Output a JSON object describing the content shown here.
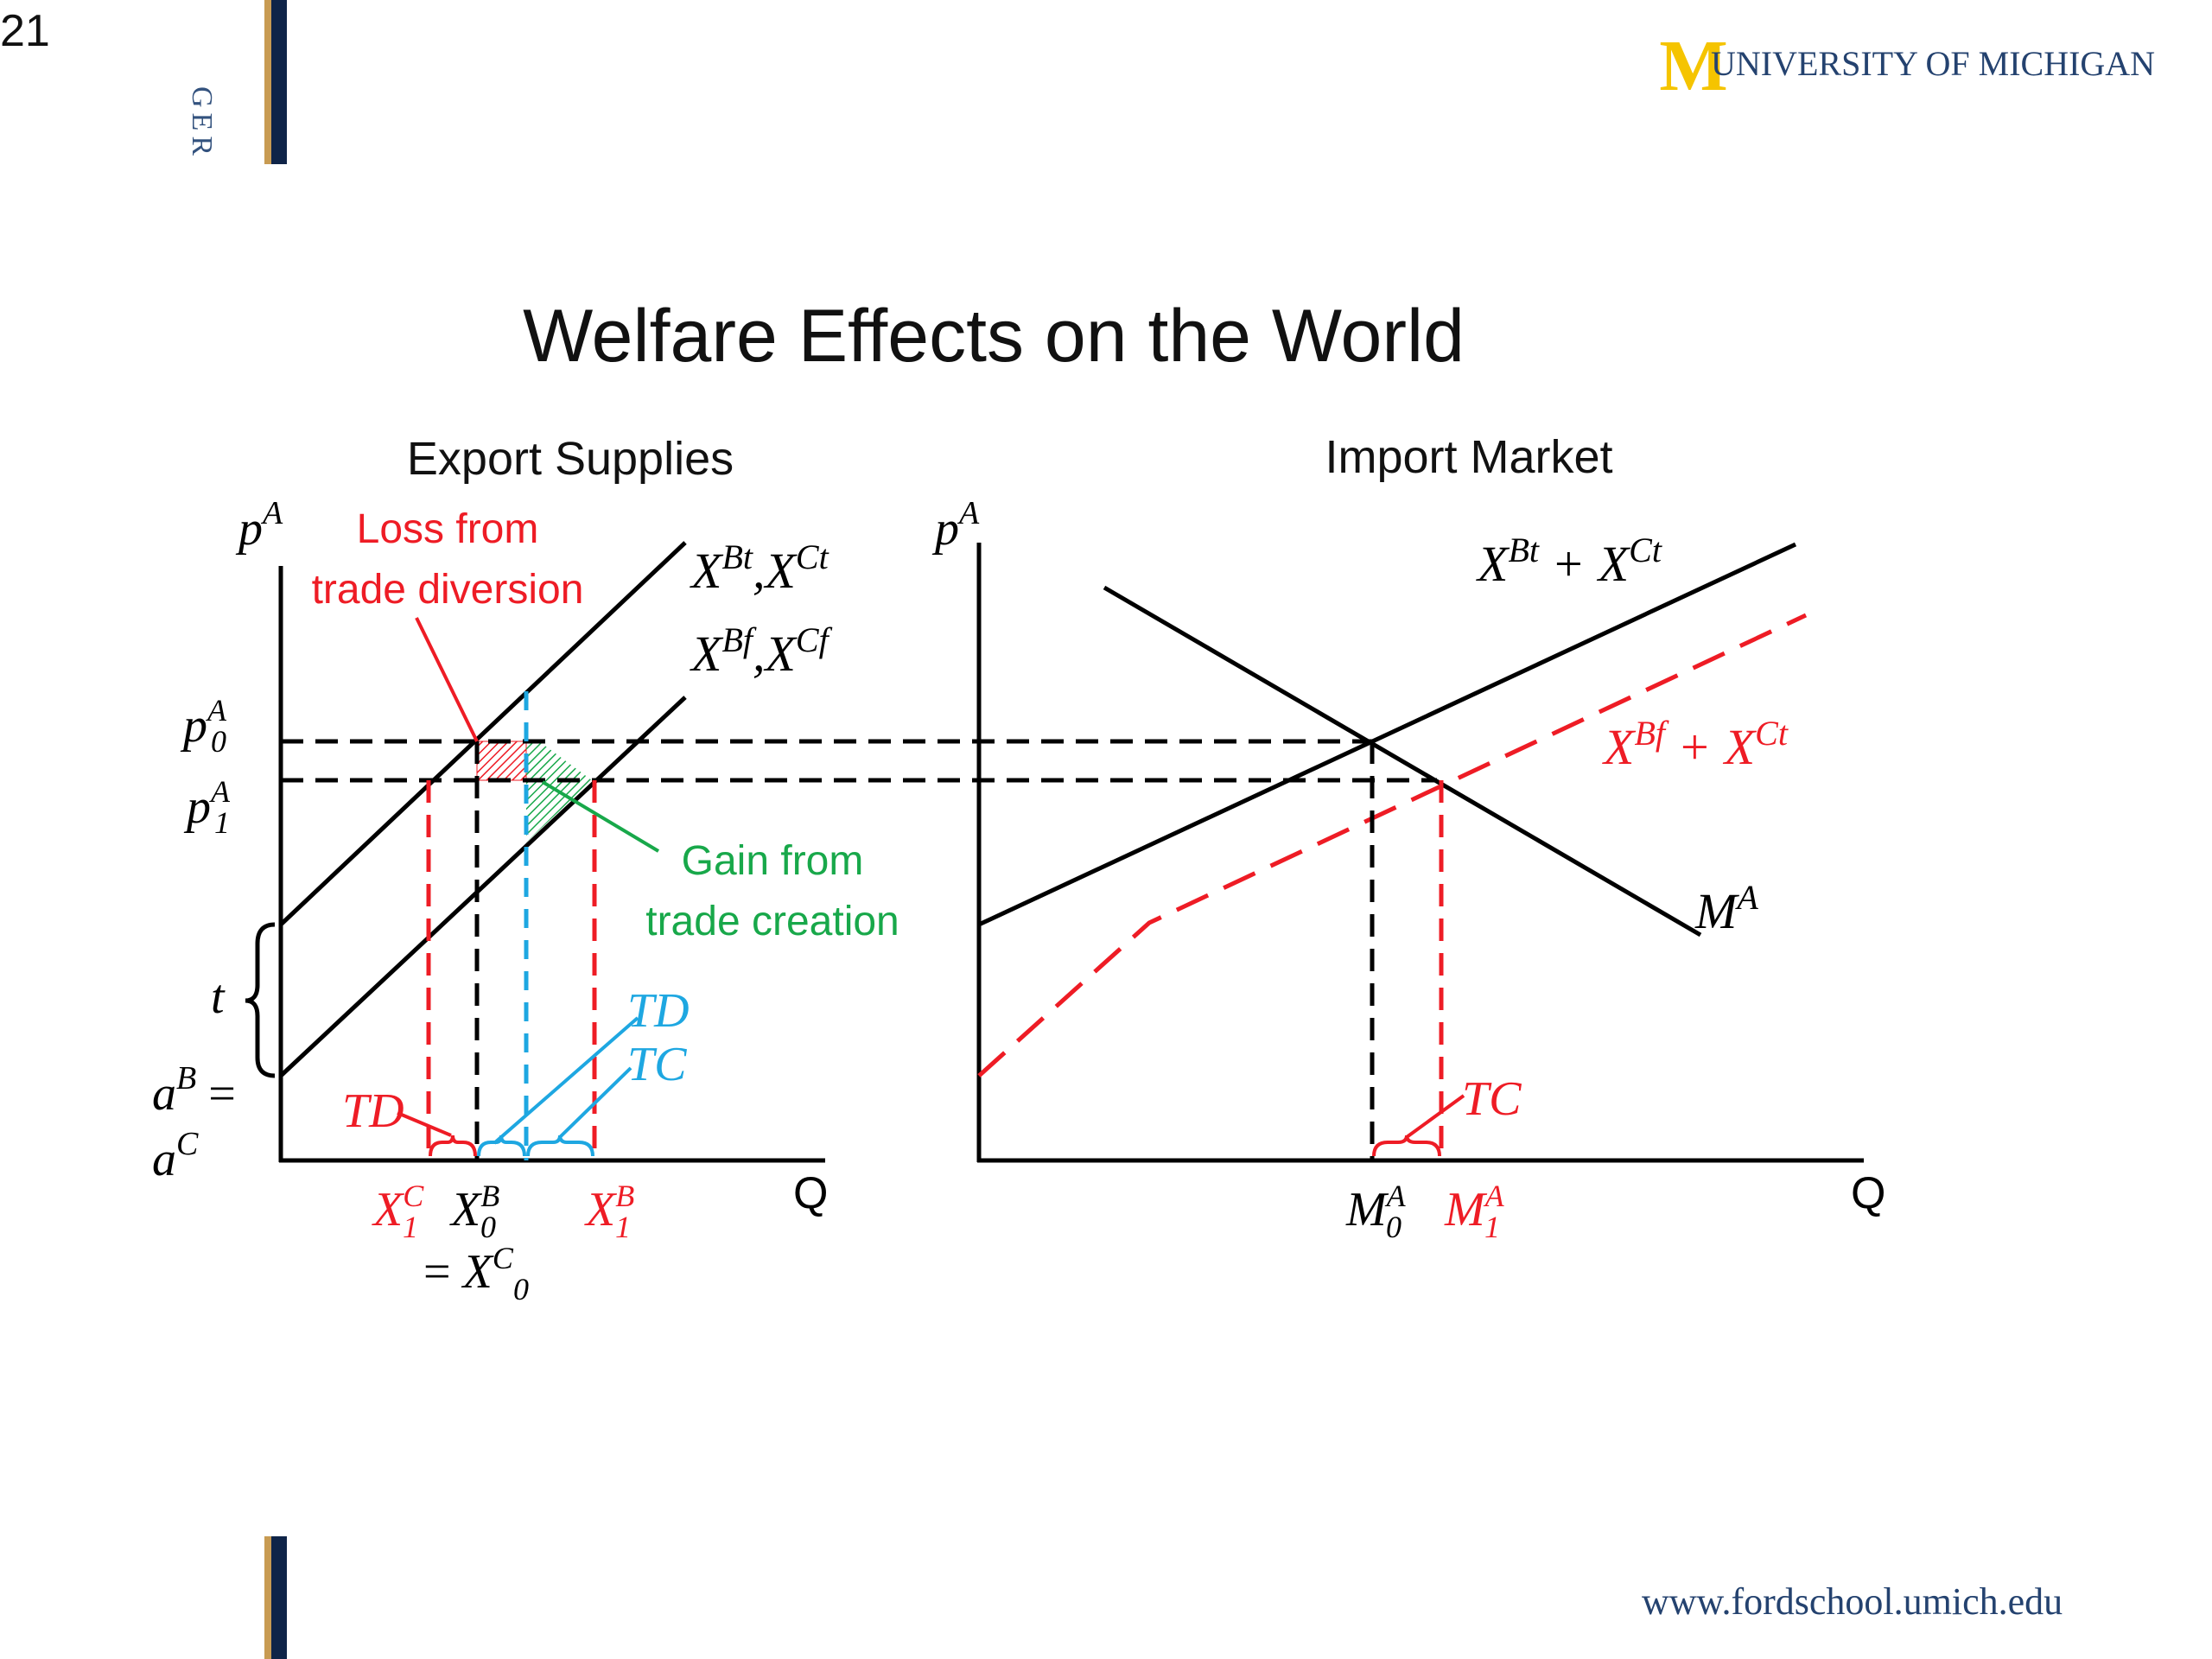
{
  "slide": {
    "number": "21",
    "side_label": "GER",
    "logo_letter": "M",
    "university": "UNIVERSITY OF MICHIGAN",
    "title": "Welfare Effects on the World",
    "footer_url": "www.fordschool.umich.edu"
  },
  "left_panel": {
    "title": "Export Supplies",
    "y_axis": "p",
    "y_axis_sup": "A",
    "x_axis": "Q",
    "curve_top": {
      "base": "X",
      "sup1": "Bt",
      "sep": ",",
      "base2": "X",
      "sup2": "Ct"
    },
    "curve_bottom": {
      "base": "X",
      "sup1": "Bf",
      "sep": ",",
      "base2": "X",
      "sup2": "Cf"
    },
    "p0": {
      "base": "p",
      "sup": "A",
      "sub": "0"
    },
    "p1": {
      "base": "p",
      "sup": "A",
      "sub": "1"
    },
    "t_label": "t",
    "aB": {
      "base": "a",
      "sup": "B",
      "eq": "="
    },
    "aC": {
      "base": "a",
      "sup": "C"
    },
    "loss_line1": "Loss from",
    "loss_line2": "trade diversion",
    "gain_line1": "Gain from",
    "gain_line2": "trade creation",
    "td_red": "TD",
    "td_blue": "TD",
    "tc_blue": "TC",
    "x1c": {
      "base": "X",
      "sup": "C",
      "sub": "1"
    },
    "x0b": {
      "base": "X",
      "sup": "B",
      "sub": "0"
    },
    "x1b": {
      "base": "X",
      "sup": "B",
      "sub": "1"
    },
    "x0c": {
      "eq": "=",
      "base": "X",
      "sup": "C",
      "sub": "0"
    }
  },
  "right_panel": {
    "title": "Import Market",
    "y_axis": "p",
    "y_axis_sup": "A",
    "x_axis": "Q",
    "supply_top": {
      "base1": "X",
      "sup1": "Bt",
      "plus": "+",
      "base2": "X",
      "sup2": "Ct"
    },
    "supply_red": {
      "base1": "X",
      "sup1": "Bf",
      "plus": "+",
      "base2": "X",
      "sup2": "Ct"
    },
    "demand": {
      "base": "M",
      "sup": "A"
    },
    "tc_red": "TC",
    "m0": {
      "base": "M",
      "sup": "A",
      "sub": "0"
    },
    "m1": {
      "base": "M",
      "sup": "A",
      "sub": "1"
    }
  },
  "colors": {
    "black": "#000000",
    "red": "#ee1c25",
    "blue": "#1ea7e1",
    "green": "#18a84a",
    "navy": "#0f2448",
    "gold": "#c89b52",
    "um_maize": "#f5c400",
    "um_blue": "#24426f"
  }
}
